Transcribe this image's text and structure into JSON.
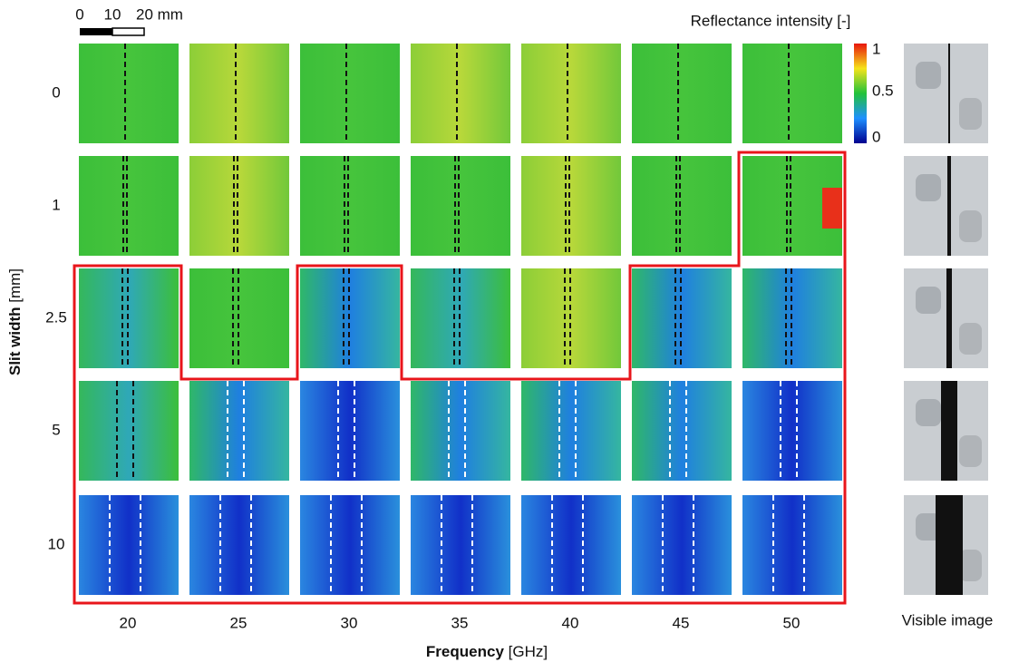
{
  "scale_bar": {
    "labels": [
      "0",
      "10",
      "20 mm"
    ]
  },
  "colorbar": {
    "title": "Reflectance intensity [-]",
    "ticks": [
      "1",
      "0.5",
      "0"
    ]
  },
  "rows": [
    "0",
    "1",
    "2.5",
    "5",
    "10"
  ],
  "columns": [
    "20",
    "25",
    "30",
    "35",
    "40",
    "45",
    "50"
  ],
  "y_title": {
    "bold": "Slit width",
    "unit": " [mm]"
  },
  "x_title": {
    "bold": "Frequency",
    "unit": " [GHz]"
  },
  "visible_label": "Visible image"
}
